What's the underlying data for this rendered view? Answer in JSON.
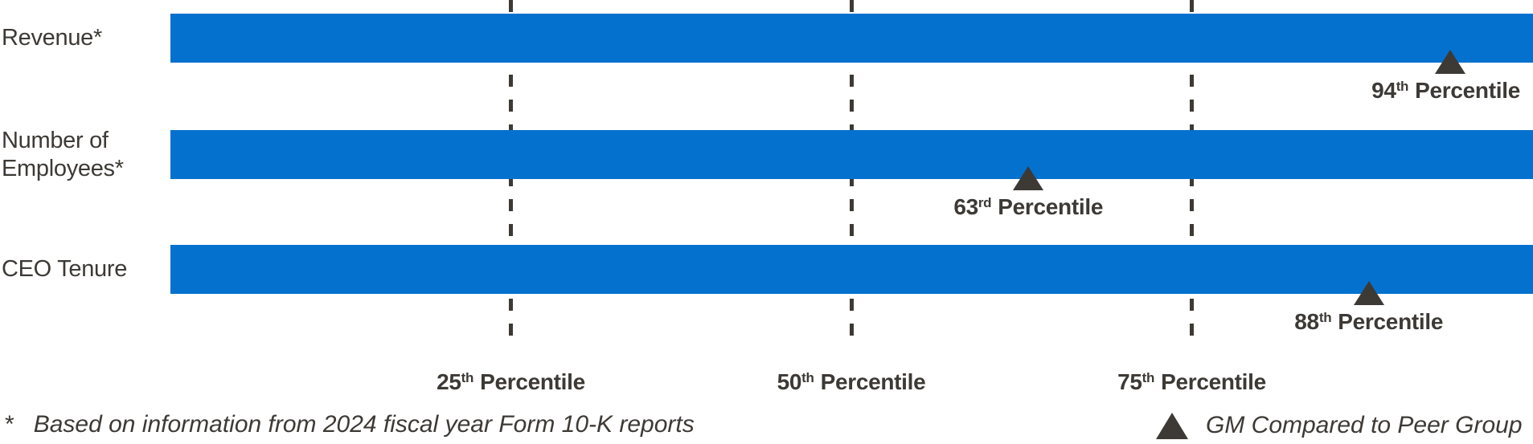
{
  "colors": {
    "bar_blue": "#0571CE",
    "ink_dark_gray": "#3D3935",
    "background": "#FFFFFF"
  },
  "chart_data": {
    "type": "bar",
    "orientation": "horizontal",
    "title": "",
    "categories": [
      "Revenue*",
      "Number of Employees*",
      "CEO Tenure"
    ],
    "category_label_lines": [
      [
        "Revenue*",
        ""
      ],
      [
        "Number of",
        "Employees*"
      ],
      [
        "CEO Tenure",
        ""
      ]
    ],
    "bar_range": [
      0,
      100
    ],
    "series": [
      {
        "name": "GM Compared to Peer Group",
        "marker": "triangle-up",
        "values": [
          94,
          63,
          88
        ]
      }
    ],
    "value_labels": [
      {
        "num": "94",
        "suffix": "th",
        "word": "Percentile"
      },
      {
        "num": "63",
        "suffix": "rd",
        "word": "Percentile"
      },
      {
        "num": "88",
        "suffix": "th",
        "word": "Percentile"
      }
    ],
    "x_axis": {
      "range": [
        0,
        100
      ],
      "gridlines": [
        25,
        50,
        75
      ],
      "grid_style": "dashed",
      "tick_labels": [
        {
          "num": "25",
          "suffix": "th",
          "word": "Percentile"
        },
        {
          "num": "50",
          "suffix": "th",
          "word": "Percentile"
        },
        {
          "num": "75",
          "suffix": "th",
          "word": "Percentile"
        }
      ]
    },
    "legend": {
      "position": "bottom-right",
      "entries": [
        {
          "marker": "triangle-up",
          "label": "GM Compared to Peer Group"
        }
      ]
    },
    "footnote": {
      "symbol": "*",
      "text": "Based on information from 2024 fiscal year Form 10-K reports"
    }
  }
}
